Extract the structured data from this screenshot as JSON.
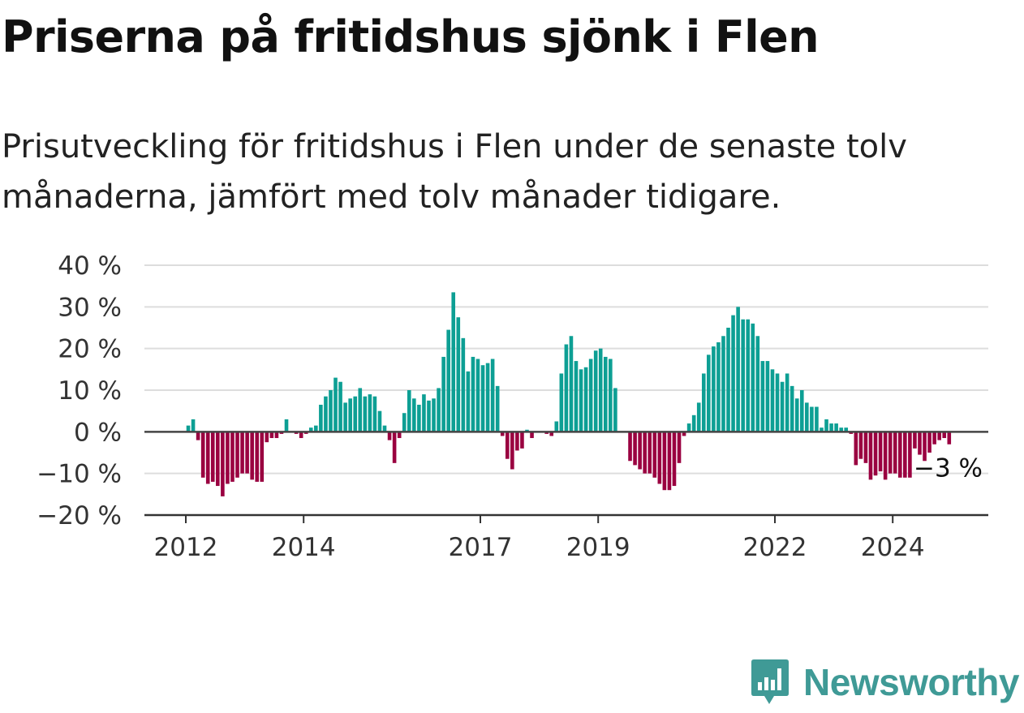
{
  "header": {
    "title": "Priserna på fritidshus sjönk i Flen",
    "subtitle": "Prisutveckling för fritidshus i Flen under de senaste tolv månaderna, jämfört med tolv månader tidigare."
  },
  "chart_data": {
    "type": "bar",
    "title": "Priserna på fritidshus sjönk i Flen",
    "subtitle": "Prisutveckling för fritidshus i Flen under de senaste tolv månaderna, jämfört med tolv månader tidigare.",
    "xlabel": "",
    "ylabel": "",
    "ylim": [
      -20,
      40
    ],
    "y_ticks": [
      {
        "value": 40,
        "label": "40 %"
      },
      {
        "value": 30,
        "label": "30 %"
      },
      {
        "value": 20,
        "label": "20 %"
      },
      {
        "value": 10,
        "label": "10 %"
      },
      {
        "value": 0,
        "label": "0 %"
      },
      {
        "value": -10,
        "label": "−10 %"
      },
      {
        "value": -20,
        "label": "−20 %"
      }
    ],
    "x_ticks": [
      {
        "year": 2012,
        "label": "2012"
      },
      {
        "year": 2014,
        "label": "2014"
      },
      {
        "year": 2017,
        "label": "2017"
      },
      {
        "year": 2019,
        "label": "2019"
      },
      {
        "year": 2022,
        "label": "2022"
      },
      {
        "year": 2024,
        "label": "2024"
      }
    ],
    "grid": true,
    "last_value_label": "−3 %",
    "colors": {
      "positive": "#0d9f94",
      "negative": "#9a0040",
      "zero_line": "#444444",
      "grid": "#dddddd",
      "axis": "#333333"
    },
    "start_month": "2012-01",
    "values": [
      1.5,
      3,
      -2,
      -11,
      -12.5,
      -12,
      -13,
      -15.5,
      -12.5,
      -12,
      -11,
      -10,
      -10,
      -11.5,
      -12,
      -12,
      -2.5,
      -1.5,
      -1.5,
      -0.5,
      3,
      0,
      -0.5,
      -1.5,
      -0.5,
      1,
      1.5,
      6.5,
      8.5,
      10,
      13,
      12,
      7,
      8,
      8.5,
      10.5,
      8.5,
      9,
      8.5,
      5,
      1.5,
      -2,
      -7.5,
      -1.5,
      4.5,
      10,
      8,
      6.5,
      9,
      7.5,
      8,
      10.5,
      18,
      24.5,
      33.5,
      27.5,
      22.5,
      14.5,
      18,
      17.5,
      16,
      16.5,
      17.5,
      11,
      -1,
      -6.5,
      -9,
      -4.5,
      -4,
      0.5,
      -1.5,
      0,
      0,
      -0.5,
      -1,
      2.5,
      14,
      21,
      23,
      17,
      15,
      15.5,
      17.5,
      19.5,
      20,
      18,
      17.5,
      10.5,
      0,
      0,
      -7,
      -8,
      -9,
      -10,
      -10,
      -11,
      -12.5,
      -14,
      -14,
      -13,
      -7.5,
      -1,
      2,
      4,
      7,
      14,
      18.5,
      20.5,
      21.5,
      23,
      25,
      28,
      30,
      27,
      27,
      26,
      23,
      17,
      17,
      15,
      14,
      12,
      14,
      11,
      8,
      10,
      7,
      6,
      6,
      1,
      3,
      2,
      2,
      1,
      1,
      -0.5,
      -8,
      -6.5,
      -7.5,
      -11.5,
      -10.5,
      -9.5,
      -11.5,
      -10,
      -10,
      -11,
      -11,
      -11,
      -4,
      -5.5,
      -7,
      -5,
      -3,
      -2,
      -1.5,
      -3
    ]
  },
  "brand": {
    "name": "Newsworthy",
    "icon": "newsworthy-logo-icon",
    "color": "#3f9a96"
  }
}
